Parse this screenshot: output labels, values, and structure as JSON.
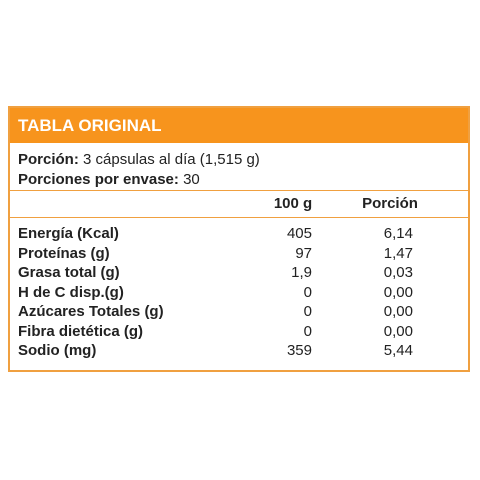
{
  "table": {
    "title": "TABLA ORIGINAL",
    "serving_label": "Porción:",
    "serving_value": "3 cápsulas al día (1,515 g)",
    "servings_label": "Porciones por envase:",
    "servings_value": "30",
    "col_100g": "100 g",
    "col_portion": "Porción",
    "rows": [
      {
        "name": "Energía (Kcal)",
        "v100": "405",
        "portion": "6,14"
      },
      {
        "name": "Proteínas (g)",
        "v100": "97",
        "portion": "1,47"
      },
      {
        "name": "Grasa total (g)",
        "v100": "1,9",
        "portion": "0,03"
      },
      {
        "name": "H de C disp.(g)",
        "v100": "0",
        "portion": "0,00"
      },
      {
        "name": "Azúcares Totales (g)",
        "v100": "0",
        "portion": "0,00"
      },
      {
        "name": "Fibra dietética (g)",
        "v100": "0",
        "portion": "0,00"
      },
      {
        "name": "Sodio (mg)",
        "v100": "359",
        "portion": "5,44"
      }
    ]
  },
  "colors": {
    "accent": "#f7941d",
    "border": "#f0a040"
  }
}
